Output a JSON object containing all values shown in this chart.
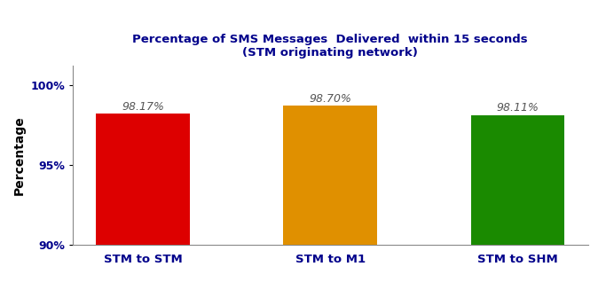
{
  "categories": [
    "STM to STM",
    "STM to M1",
    "STM to SHM"
  ],
  "values": [
    98.17,
    98.7,
    98.11
  ],
  "labels": [
    "98.17%",
    "98.70%",
    "98.11%"
  ],
  "bar_colors": [
    "#dd0000",
    "#e09000",
    "#1a8a00"
  ],
  "title_line1": "Percentage of SMS Messages  Delivered  within 15 seconds",
  "title_line2": "(STM originating network)",
  "ylabel": "Percentage",
  "ylim_min": 90,
  "ylim_max": 101.2,
  "yticks": [
    90,
    95,
    100
  ],
  "ytick_labels": [
    "90%",
    "95%",
    "100%"
  ],
  "bg_color": "#ffffff",
  "title_color": "#00008B",
  "axis_label_color": "#000000",
  "tick_label_color": "#00008B",
  "bar_label_color": "#555555",
  "bar_width": 0.5,
  "figsize": [
    6.83,
    3.36
  ],
  "dpi": 100
}
